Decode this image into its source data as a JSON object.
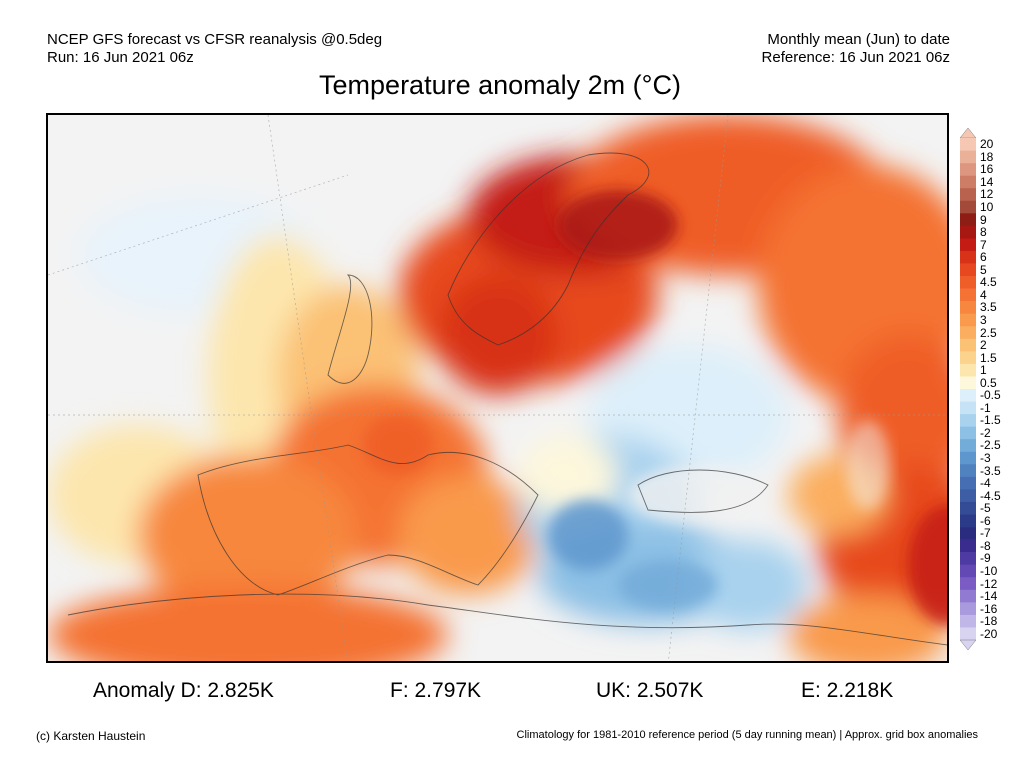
{
  "header": {
    "line1_left": "NCEP GFS forecast vs CFSR reanalysis @0.5deg",
    "line2_left": "Run: 16 Jun 2021 06z",
    "line1_right": "Monthly mean (Jun) to date",
    "line2_right": "Reference: 16 Jun 2021 06z"
  },
  "title": "Temperature anomaly 2m (°C)",
  "colorbar": {
    "labels": [
      "20",
      "18",
      "16",
      "14",
      "12",
      "10",
      "9",
      "8",
      "7",
      "6",
      "5",
      "4.5",
      "4",
      "3.5",
      "3",
      "2.5",
      "2",
      "1.5",
      "1",
      "0.5",
      "-0.5",
      "-1",
      "-1.5",
      "-2",
      "-2.5",
      "-3",
      "-3.5",
      "-4",
      "-4.5",
      "-5",
      "-6",
      "-7",
      "-8",
      "-9",
      "-10",
      "-12",
      "-14",
      "-16",
      "-18",
      "-20"
    ],
    "colors": [
      "#f6c8b4",
      "#eab098",
      "#dd9680",
      "#cd7c66",
      "#b9634f",
      "#a44a3a",
      "#8e1d16",
      "#a81812",
      "#c41c14",
      "#d83318",
      "#e7481f",
      "#ef5d28",
      "#f47233",
      "#f7873e",
      "#f99a4c",
      "#fbae5f",
      "#fbc174",
      "#fcd38c",
      "#fde6ad",
      "#fdf7dc",
      "#ddeffa",
      "#c5e3f5",
      "#a8d2ee",
      "#8cc0e5",
      "#73abd9",
      "#5e97cd",
      "#4f82bf",
      "#456fb2",
      "#3d5ea4",
      "#344c96",
      "#2b3b8a",
      "#2a2c80",
      "#3a2c8f",
      "#4e3aa3",
      "#6349b4",
      "#7a5cc4",
      "#917bd2",
      "#a999dd",
      "#c1b6e8",
      "#d9d3f2"
    ]
  },
  "stats": {
    "d": "Anomaly D: 2.825K",
    "f": "F: 2.797K",
    "uk": "UK: 2.507K",
    "e": "E: 2.218K"
  },
  "footer": {
    "credit": "(c) Karsten Haustein",
    "note": "Climatology for 1981-2010 reference period (5 day running mean) | Approx. grid box anomalies"
  }
}
